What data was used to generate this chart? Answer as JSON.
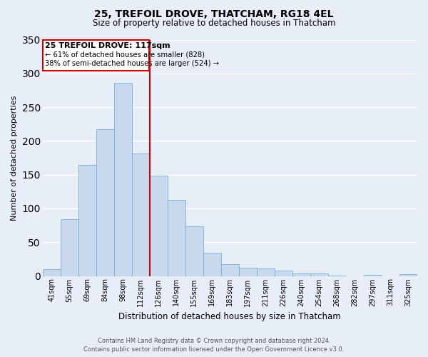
{
  "title": "25, TREFOIL DROVE, THATCHAM, RG18 4EL",
  "subtitle": "Size of property relative to detached houses in Thatcham",
  "xlabel": "Distribution of detached houses by size in Thatcham",
  "ylabel": "Number of detached properties",
  "bar_labels": [
    "41sqm",
    "55sqm",
    "69sqm",
    "84sqm",
    "98sqm",
    "112sqm",
    "126sqm",
    "140sqm",
    "155sqm",
    "169sqm",
    "183sqm",
    "197sqm",
    "211sqm",
    "226sqm",
    "240sqm",
    "254sqm",
    "268sqm",
    "282sqm",
    "297sqm",
    "311sqm",
    "325sqm"
  ],
  "bar_values": [
    10,
    84,
    164,
    217,
    286,
    181,
    149,
    113,
    74,
    34,
    17,
    12,
    11,
    8,
    4,
    4,
    1,
    0,
    2,
    0,
    3
  ],
  "bar_color": "#c8d9ee",
  "bar_edge_color": "#7aafd4",
  "vline_x_index": 5,
  "vline_color": "#cc0000",
  "ylim": [
    0,
    350
  ],
  "yticks": [
    0,
    50,
    100,
    150,
    200,
    250,
    300,
    350
  ],
  "annotation_title": "25 TREFOIL DROVE: 117sqm",
  "annotation_line1": "← 61% of detached houses are smaller (828)",
  "annotation_line2": "38% of semi-detached houses are larger (524) →",
  "annotation_box_color": "#cc0000",
  "footer_line1": "Contains HM Land Registry data © Crown copyright and database right 2024.",
  "footer_line2": "Contains public sector information licensed under the Open Government Licence v3.0.",
  "bg_color": "#e8eef8",
  "grid_color": "#d0daea",
  "title_fontsize": 10,
  "subtitle_fontsize": 8.5,
  "ylabel_fontsize": 8,
  "xlabel_fontsize": 8.5,
  "tick_fontsize": 7,
  "footer_fontsize": 6
}
